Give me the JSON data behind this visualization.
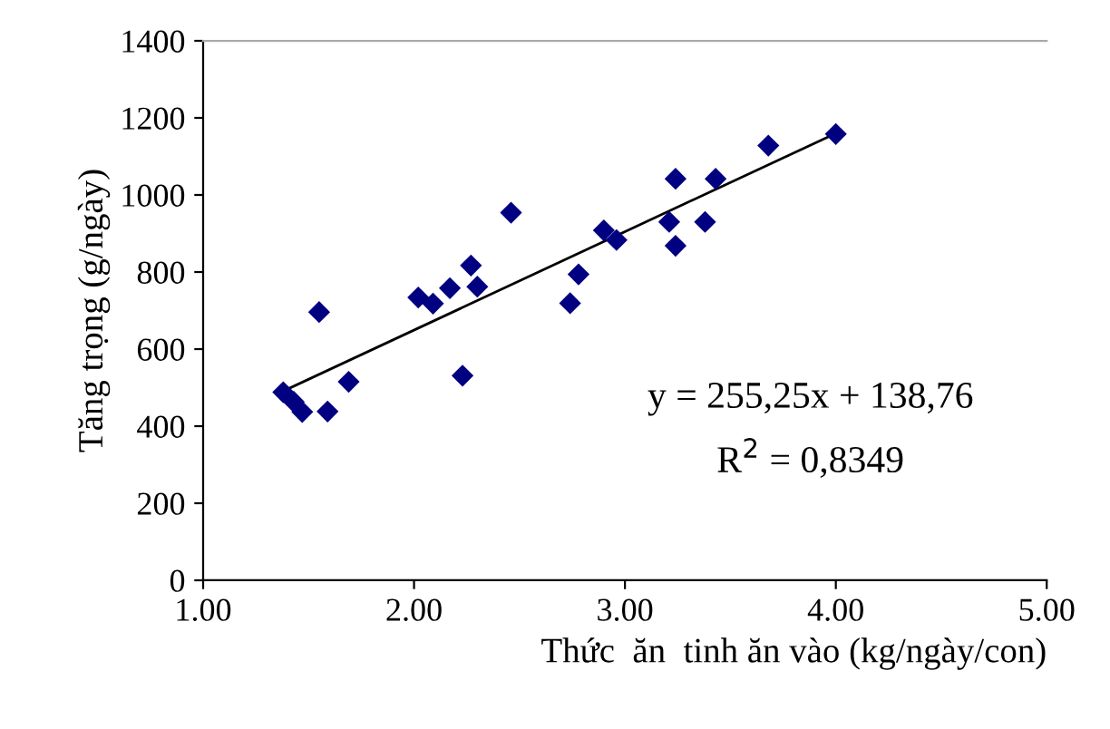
{
  "chart_data": {
    "type": "scatter",
    "xlabel": "Thức  ăn  tinh ăn vào (kg/ngày/con)",
    "ylabel": "Tăng trọng (g/ngày)",
    "x": [
      1.38,
      1.43,
      1.47,
      1.59,
      1.55,
      1.69,
      2.02,
      2.09,
      2.17,
      2.23,
      2.27,
      2.3,
      2.46,
      2.74,
      2.78,
      2.9,
      2.96,
      3.21,
      3.24,
      3.24,
      3.38,
      3.43,
      3.68,
      4.0
    ],
    "series": [
      {
        "color": "#000080",
        "marker": "diamond",
        "values": [
          488,
          463,
          437,
          438,
          696,
          515,
          734,
          718,
          758,
          531,
          817,
          762,
          954,
          719,
          794,
          908,
          883,
          930,
          868,
          1042,
          930,
          1042,
          1128,
          1158
        ]
      },
      {
        "type": "line",
        "color": "#000000",
        "x": [
          1.38,
          4.0
        ],
        "values": [
          491,
          1160
        ]
      }
    ],
    "annotations": [
      "y = 255,25x + 138,76",
      "R$^{2}$ = 0,8349"
    ],
    "xlim": [
      1,
      5
    ],
    "xticks": [
      {
        "value": 1,
        "label": "1.00"
      },
      {
        "value": 2,
        "label": "2.00"
      },
      {
        "value": 3,
        "label": "3.00"
      },
      {
        "value": 4,
        "label": "4.00"
      },
      {
        "value": 5,
        "label": "5.00"
      }
    ],
    "ylim": [
      0,
      1400
    ],
    "yticks": [
      0,
      200,
      400,
      600,
      800,
      1000,
      1200,
      1400
    ],
    "grid": false,
    "legend": false
  }
}
